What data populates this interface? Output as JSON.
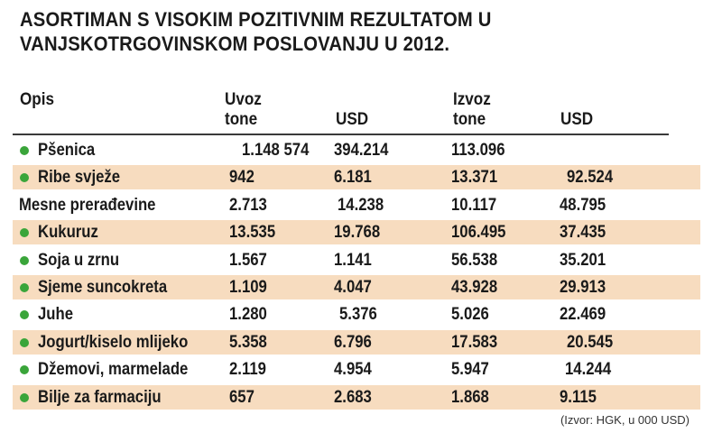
{
  "chart_data": {
    "type": "table",
    "title_lines": [
      "ASORTIMAN S VISOKIM POZITIVNIM REZULTATOM U",
      "VANJSKOTRGOVINSKOM POSLOVANJU U 2012."
    ],
    "headers": {
      "opis": "Opis",
      "uvoz": "Uvoz",
      "uvoz_tone": "tone",
      "uvoz_usd": "USD",
      "izvoz": "Izvoz",
      "izvoz_tone": "tone",
      "izvoz_usd": "USD"
    },
    "rows": [
      {
        "opis": "Pšenica",
        "uvoz_tone": "1.148 574",
        "uvoz_usd": "394.214",
        "izvoz_tone": "113.096",
        "izvoz_usd": "",
        "bullet": true,
        "shaded": false
      },
      {
        "opis": "Ribe svježe",
        "uvoz_tone": "942",
        "uvoz_usd": "6.181",
        "izvoz_tone": "13.371",
        "izvoz_usd": "92.524",
        "bullet": true,
        "shaded": true
      },
      {
        "opis": "Mesne prerađevine",
        "uvoz_tone": "2.713",
        "uvoz_usd": "14.238",
        "izvoz_tone": "10.117",
        "izvoz_usd": "48.795",
        "bullet": false,
        "shaded": false
      },
      {
        "opis": "Kukuruz",
        "uvoz_tone": "13.535",
        "uvoz_usd": "19.768",
        "izvoz_tone": "106.495",
        "izvoz_usd": "37.435",
        "bullet": true,
        "shaded": true
      },
      {
        "opis": "Soja u zrnu",
        "uvoz_tone": "1.567",
        "uvoz_usd": "1.141",
        "izvoz_tone": "56.538",
        "izvoz_usd": "35.201",
        "bullet": true,
        "shaded": false
      },
      {
        "opis": "Sjeme suncokreta",
        "uvoz_tone": "1.109",
        "uvoz_usd": "4.047",
        "izvoz_tone": "43.928",
        "izvoz_usd": "29.913",
        "bullet": true,
        "shaded": true
      },
      {
        "opis": "Juhe",
        "uvoz_tone": "1.280",
        "uvoz_usd": "5.376",
        "izvoz_tone": "5.026",
        "izvoz_usd": "22.469",
        "bullet": true,
        "shaded": false
      },
      {
        "opis": "Jogurt/kiselo mlijeko",
        "uvoz_tone": "5.358",
        "uvoz_usd": "6.796",
        "izvoz_tone": "17.583",
        "izvoz_usd": "20.545",
        "bullet": true,
        "shaded": true
      },
      {
        "opis": "Džemovi, marmelade",
        "uvoz_tone": "2.119",
        "uvoz_usd": "4.954",
        "izvoz_tone": "5.947",
        "izvoz_usd": "14.244",
        "bullet": true,
        "shaded": false
      },
      {
        "opis": "Bilje za farmaciju",
        "uvoz_tone": "657",
        "uvoz_usd": "2.683",
        "izvoz_tone": "1.868",
        "izvoz_usd": "9.115",
        "bullet": true,
        "shaded": true
      }
    ],
    "source": "(Izvor: HGK, u 000 USD)"
  },
  "colors": {
    "bullet": "#3aa53a",
    "row_shade": "#f7dcbf",
    "text": "#1a1a1a"
  }
}
